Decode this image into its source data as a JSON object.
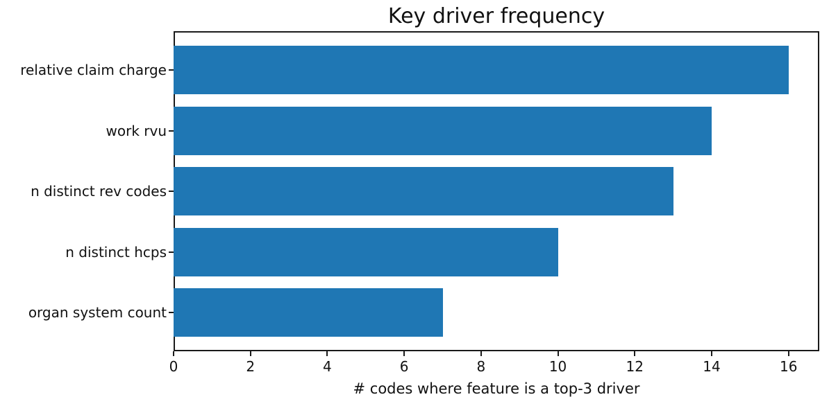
{
  "chart_data": {
    "type": "bar",
    "orientation": "horizontal",
    "title": "Key driver frequency",
    "categories": [
      "relative claim charge",
      "work rvu",
      "n distinct rev codes",
      "n distinct hcps",
      "organ system count"
    ],
    "values": [
      16,
      14,
      13,
      10,
      7
    ],
    "xlabel": "# codes where feature is a top-3 driver",
    "ylabel": "",
    "x_ticks": [
      0,
      2,
      4,
      6,
      8,
      10,
      12,
      14,
      16
    ],
    "xlim": [
      0,
      16.8
    ],
    "bar_color": "#1f77b4",
    "axis_color": "#1a1a1a",
    "grid": false,
    "legend": "none",
    "background_color": "#ffffff"
  }
}
